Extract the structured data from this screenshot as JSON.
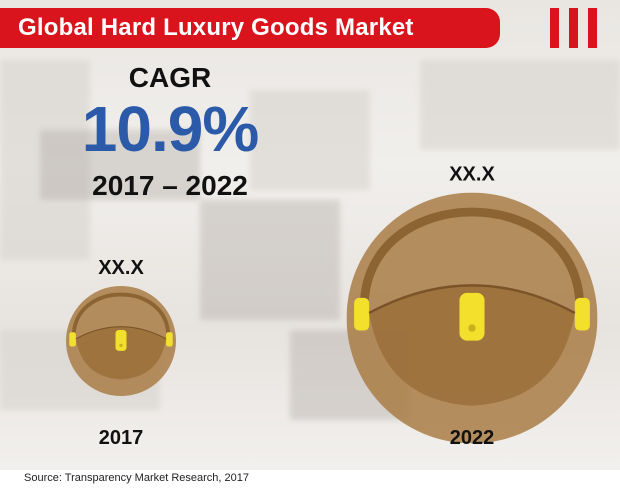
{
  "header": {
    "title": "Global Hard Luxury Goods Market"
  },
  "cagr": {
    "label": "CAGR",
    "value": "10.9%",
    "period": "2017 – 2022"
  },
  "chart_data": {
    "type": "bubble",
    "title": "Global Hard Luxury Goods Market",
    "categories": [
      "2017",
      "2022"
    ],
    "value_labels": [
      "XX.X",
      "XX.X"
    ],
    "relative_size": [
      1.0,
      2.28
    ],
    "colors": {
      "bag": "#a97d45",
      "strap": "#8c6434",
      "clasp": "#f2e02c",
      "accent": "#d9141c",
      "cagr": "#2b5aa8"
    }
  },
  "footer": {
    "source": "Source: Transparency Market Research, 2017"
  },
  "icons": [
    "handbag-icon",
    "menu-bars-icon"
  ]
}
